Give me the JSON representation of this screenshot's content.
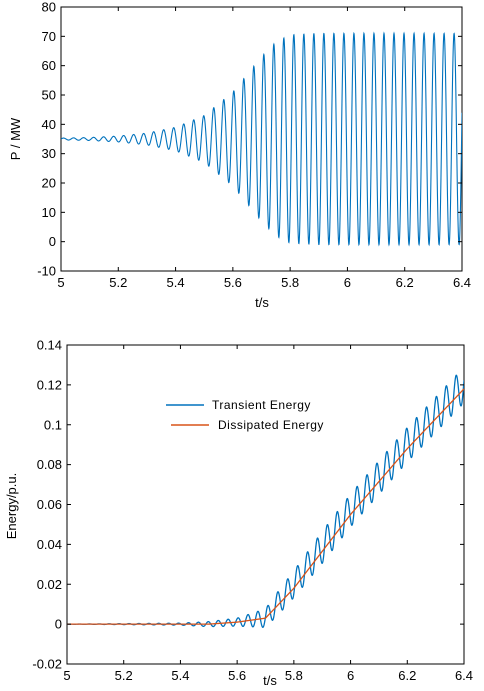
{
  "chart_data": [
    {
      "type": "line",
      "xlabel": "t/s",
      "ylabel": "P / MW",
      "xlim": [
        5,
        6.4
      ],
      "ylim": [
        -10,
        80
      ],
      "xticks": [
        5,
        5.2,
        5.4,
        5.6,
        5.8,
        6,
        6.2,
        6.4
      ],
      "xtick_labels": [
        "5",
        "5.2",
        "5.4",
        "5.6",
        "5.8",
        "6",
        "6.2",
        "6.4"
      ],
      "yticks": [
        -10,
        0,
        10,
        20,
        30,
        40,
        50,
        60,
        70,
        80
      ],
      "ytick_labels": [
        "-10",
        "0",
        "10",
        "20",
        "30",
        "40",
        "50",
        "60",
        "70",
        "80"
      ],
      "grid": false,
      "series": [
        {
          "color": "#0072BD",
          "oscillation": {
            "mean": 35,
            "frequency_hz": 28.6,
            "amplitude_envelope": [
              [
                5.0,
                0.3
              ],
              [
                5.1,
                0.5
              ],
              [
                5.2,
                1.0
              ],
              [
                5.3,
                2.0
              ],
              [
                5.4,
                4.0
              ],
              [
                5.5,
                8.0
              ],
              [
                5.6,
                16.0
              ],
              [
                5.7,
                28.0
              ],
              [
                5.75,
                33.0
              ],
              [
                5.8,
                35.5
              ],
              [
                5.9,
                36.0
              ],
              [
                6.4,
                36.0
              ]
            ]
          }
        }
      ]
    },
    {
      "type": "line",
      "xlabel": "t/s",
      "ylabel": "Energy/p.u.",
      "xlim": [
        5,
        6.4
      ],
      "ylim": [
        -0.02,
        0.14
      ],
      "xticks": [
        5,
        5.2,
        5.4,
        5.6,
        5.8,
        6,
        6.2,
        6.4
      ],
      "xtick_labels": [
        "5",
        "5.2",
        "5.4",
        "5.6",
        "5.8",
        "6",
        "6.2",
        "6.4"
      ],
      "yticks": [
        -0.02,
        0,
        0.02,
        0.04,
        0.06,
        0.08,
        0.1,
        0.12,
        0.14
      ],
      "ytick_labels": [
        "-0.02",
        "0",
        "0.02",
        "0.04",
        "0.06",
        "0.08",
        "0.1",
        "0.12",
        "0.14"
      ],
      "grid": false,
      "legend": {
        "placement": "upper-center"
      },
      "series": [
        {
          "name": "Transient Energy",
          "color": "#0072BD",
          "trend": [
            [
              5.0,
              0
            ],
            [
              5.5,
              0
            ],
            [
              5.6,
              0.001
            ],
            [
              5.7,
              0.003
            ],
            [
              5.8,
              0.02
            ],
            [
              6.0,
              0.057
            ],
            [
              6.2,
              0.09
            ],
            [
              6.4,
              0.12
            ]
          ],
          "oscillation": {
            "frequency_hz": 28.6,
            "amplitude_envelope": [
              [
                5.0,
                0.0
              ],
              [
                5.4,
                0.0005
              ],
              [
                5.6,
                0.002
              ],
              [
                5.75,
                0.006
              ],
              [
                5.9,
                0.008
              ],
              [
                6.4,
                0.009
              ]
            ]
          }
        },
        {
          "name": "Dissipated Energy",
          "color": "#D95319",
          "trend": [
            [
              5.0,
              0
            ],
            [
              5.5,
              0
            ],
            [
              5.6,
              0.001
            ],
            [
              5.7,
              0.003
            ],
            [
              5.8,
              0.018
            ],
            [
              6.0,
              0.055
            ],
            [
              6.2,
              0.088
            ],
            [
              6.4,
              0.118
            ]
          ]
        }
      ]
    }
  ]
}
